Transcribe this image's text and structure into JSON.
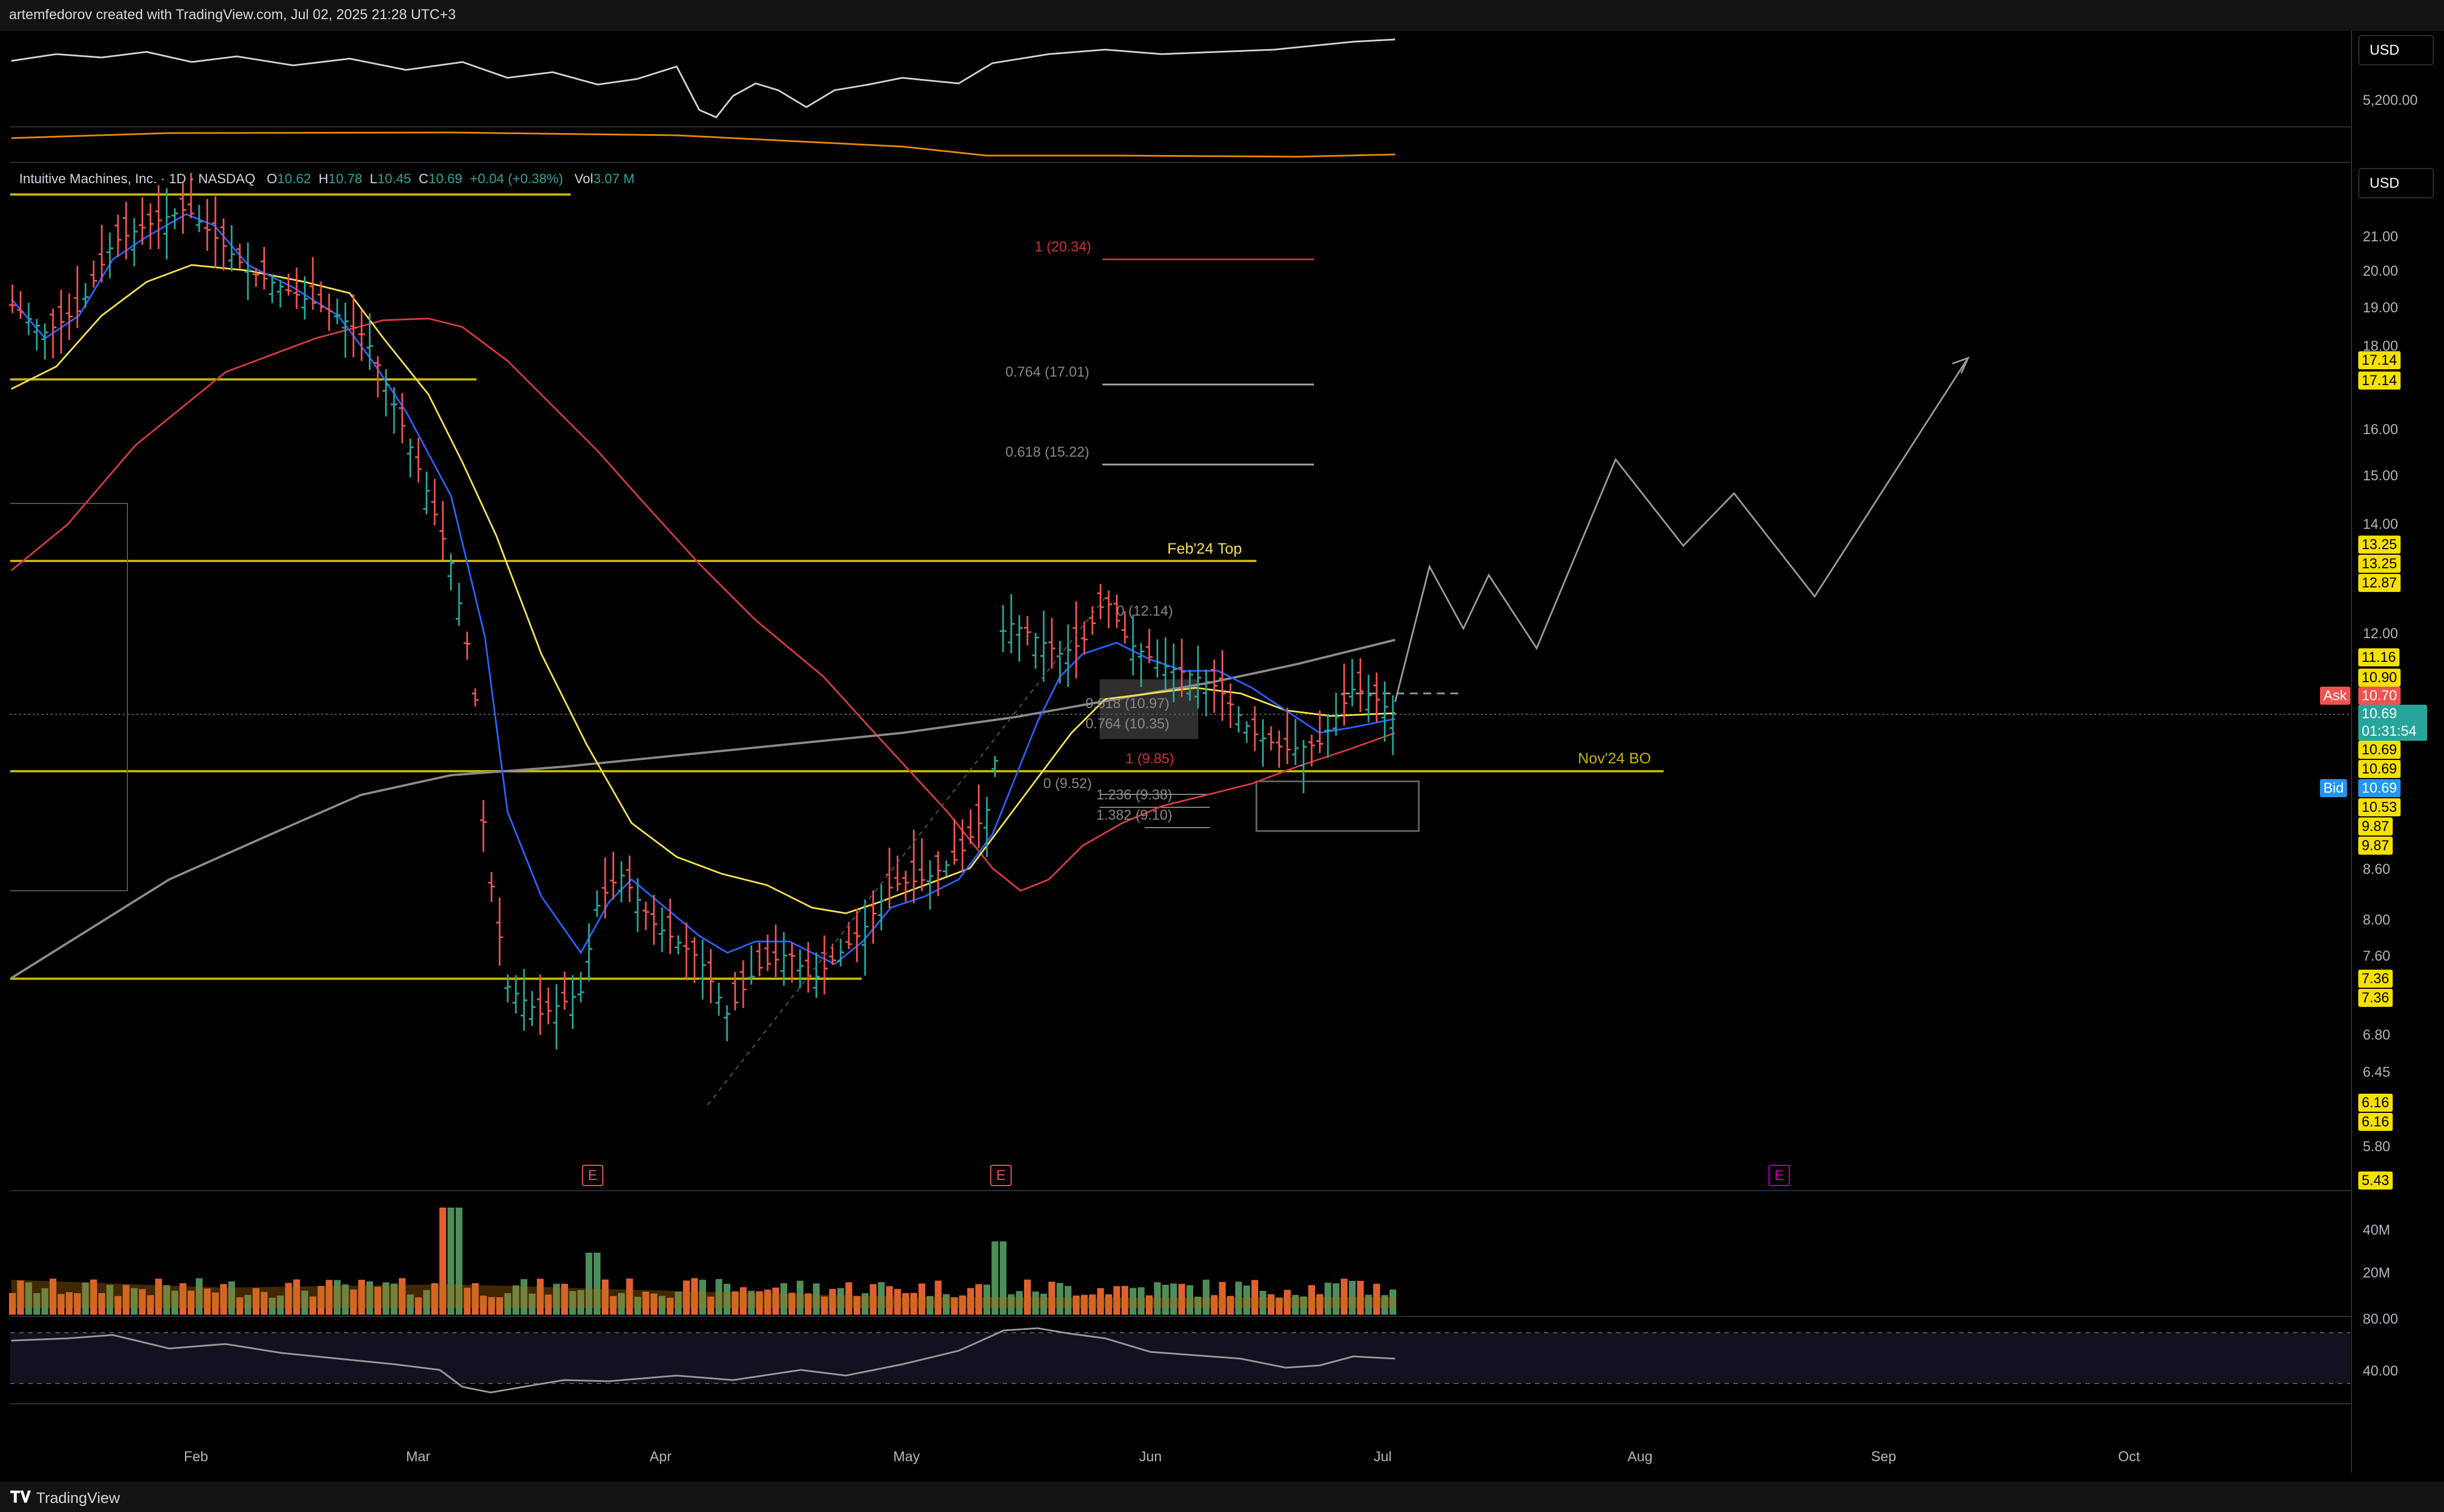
{
  "header": {
    "credit": "artemfedorov created with TradingView.com, Jul 02, 2025 21:28 UTC+3"
  },
  "legend": {
    "symbol": "Intuitive Machines, Inc. · 1D · NASDAQ",
    "o_label": "O",
    "o": "10.62",
    "h_label": "H",
    "h": "10.78",
    "l_label": "L",
    "l": "10.45",
    "c_label": "C",
    "c": "10.69",
    "change": "+0.04 (+0.38%)",
    "vol_label": "Vol",
    "vol": "3.07 M"
  },
  "currency": {
    "top": "USD",
    "main": "USD"
  },
  "top_pane_scale": "5,200.00",
  "price_scale": [
    "21.00",
    "20.00",
    "19.00",
    "18.00",
    "16.00",
    "15.00",
    "14.00",
    "12.00",
    "8.60",
    "8.00",
    "7.60",
    "6.80",
    "6.45",
    "5.80"
  ],
  "price_tags": [
    "17.14",
    "17.14",
    "13.25",
    "13.25",
    "12.87",
    "11.16",
    "10.90",
    "10.69",
    "10.69",
    "10.53",
    "9.87",
    "9.87",
    "7.36",
    "7.36",
    "6.16",
    "6.16",
    "5.43"
  ],
  "ask": {
    "label": "Ask",
    "value": "10.70"
  },
  "last": {
    "value": "10.69",
    "countdown": "01:31:54"
  },
  "bid": {
    "label": "Bid",
    "value": "10.69"
  },
  "volume_scale": [
    "40M",
    "20M"
  ],
  "rsi_scale": [
    "80.00",
    "40.00"
  ],
  "annotations": {
    "feb_top": "Feb'24 Top",
    "nov_bo": "Nov'24 BO",
    "fib_ext": [
      "1 (20.34)",
      "0.764 (17.01)",
      "0.618 (15.22)"
    ],
    "fib_retr": [
      "0 (12.14)",
      "0.618 (10.97)",
      "0.764 (10.35)",
      "1 (9.85)",
      "0 (9.52)",
      "1.236 (9.38)",
      "1.382 (9.10)"
    ],
    "earnings": [
      "E",
      "E",
      "E"
    ]
  },
  "time_axis": [
    "Feb",
    "Mar",
    "Apr",
    "May",
    "Jun",
    "Jul",
    "Aug",
    "Sep",
    "Oct"
  ],
  "footer": {
    "brand": "TradingView"
  },
  "colors": {
    "up": "#26a69a",
    "down": "#ef5350",
    "level": "#c5b30a",
    "ema_fast": "#2962ff",
    "ema_mid": "#f5e04f",
    "ema_slow": "#d63c3c",
    "sma_long": "#8a8a8a"
  },
  "chart_data": {
    "type": "candlestick",
    "title": "Intuitive Machines, Inc. · 1D · NASDAQ",
    "ylim": [
      5.43,
      22.5
    ],
    "horizontal_levels": [
      17.14,
      13.25,
      10.69,
      7.36
    ],
    "projection_path": [
      [
        "Jul",
        10.7
      ],
      [
        "Jul",
        13.0
      ],
      [
        "Jul",
        12.2
      ],
      [
        "Jul",
        12.9
      ],
      [
        "Aug",
        12.0
      ],
      [
        "Aug",
        15.3
      ],
      [
        "Aug",
        13.6
      ],
      [
        "Aug",
        14.6
      ],
      [
        "Sep",
        12.6
      ],
      [
        "Sep",
        17.8
      ]
    ]
  }
}
